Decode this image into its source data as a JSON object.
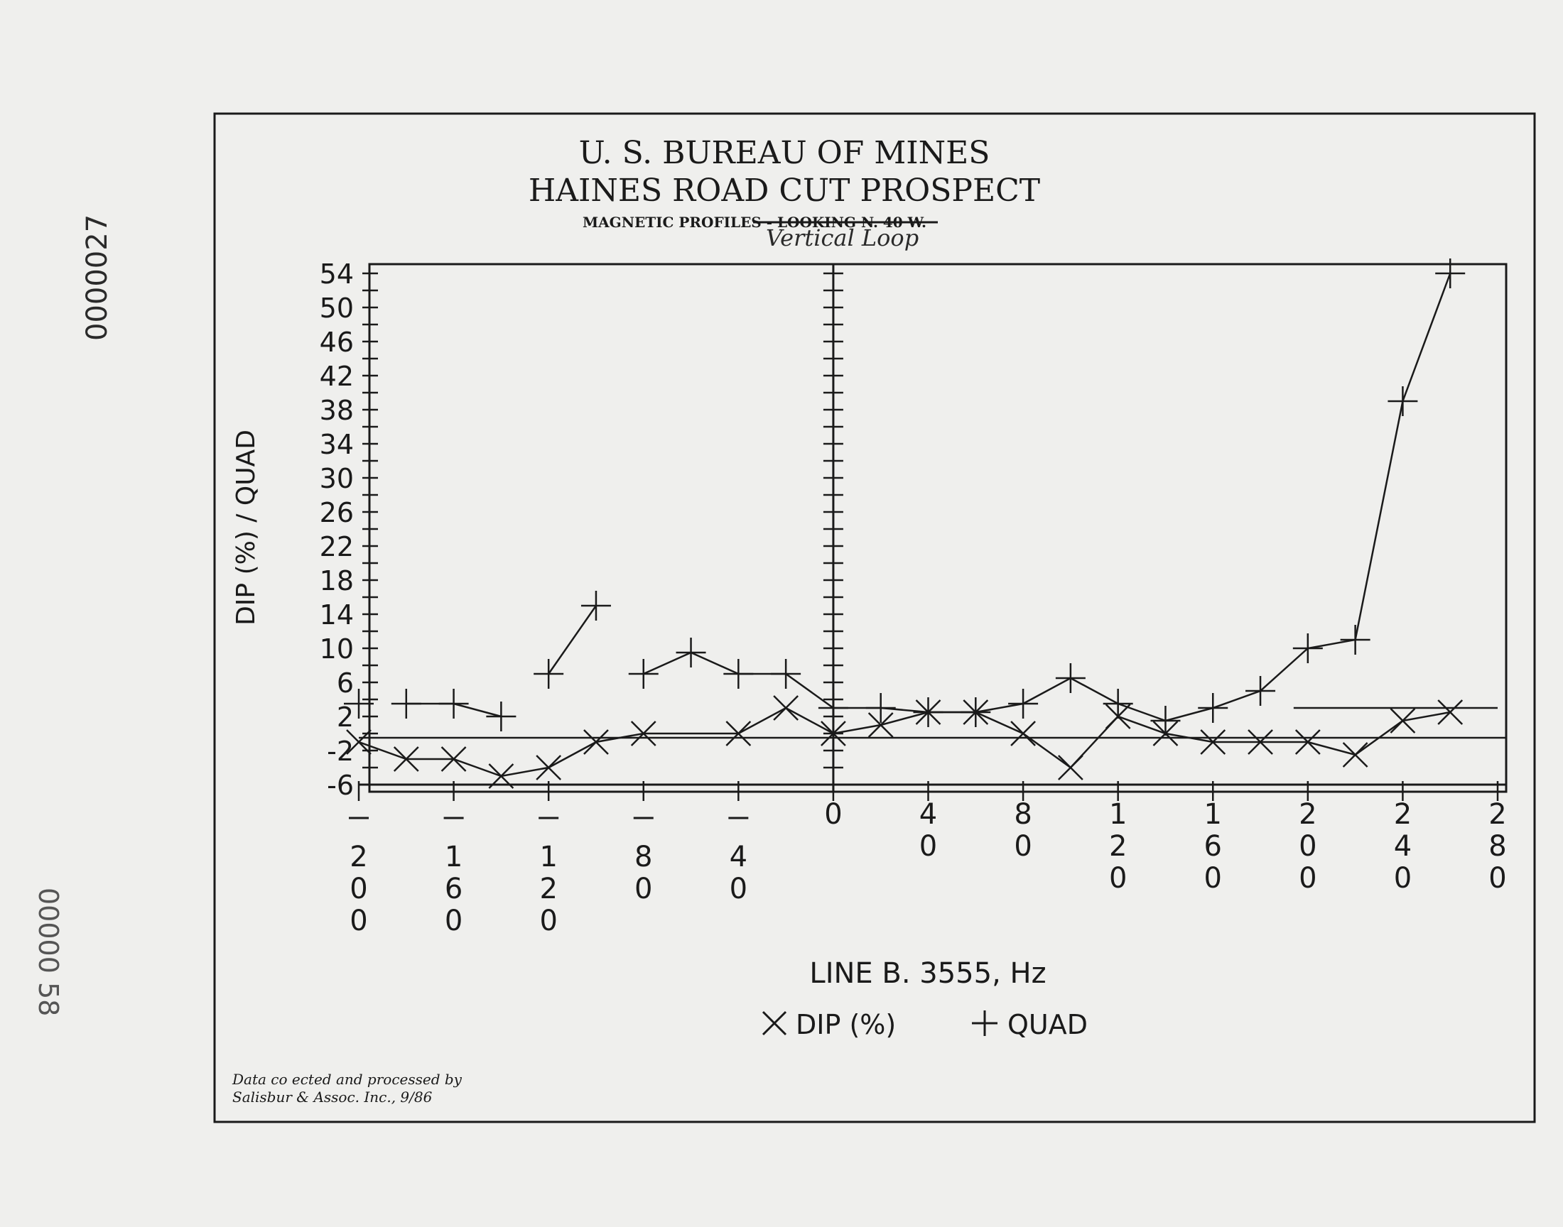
{
  "page": {
    "stamp_top": "0000027",
    "stamp_bottom": "00000 58"
  },
  "header": {
    "title_line1": "U. S. BUREAU OF MINES",
    "title_line2": "HAINES ROAD CUT PROSPECT",
    "subtitle_struck": "MAGNETIC PROFILES",
    "subtitle_rest": " - LOOKING N. 40 W.",
    "handwritten_note": "Vertical Loop"
  },
  "footer": {
    "credit_line1": "Data co ected and processed by",
    "credit_line2": "Salisbur & Assoc. Inc., 9/86"
  },
  "colors": {
    "ink": "#1a1a1a",
    "paper": "#efefed"
  },
  "chart_data": {
    "type": "line",
    "xlabel": "LINE B. 3555, Hz",
    "ylabel": "DIP (%) / QUAD",
    "xlim": [
      -200,
      280
    ],
    "ylim": [
      -6,
      54
    ],
    "x_ticks": [
      {
        "value": -200,
        "label": "-200"
      },
      {
        "value": -160,
        "label": "-160"
      },
      {
        "value": -120,
        "label": "-120"
      },
      {
        "value": -80,
        "label": "-80"
      },
      {
        "value": -40,
        "label": "-40"
      },
      {
        "value": 0,
        "label": "0"
      },
      {
        "value": 40,
        "label": "40"
      },
      {
        "value": 80,
        "label": "80"
      },
      {
        "value": 120,
        "label": "120"
      },
      {
        "value": 160,
        "label": "160"
      },
      {
        "value": 200,
        "label": "200"
      },
      {
        "value": 240,
        "label": "240"
      },
      {
        "value": 280,
        "label": "280"
      }
    ],
    "y_ticks": [
      "54",
      "50",
      "46",
      "42",
      "38",
      "34",
      "30",
      "26",
      "22",
      "18",
      "14",
      "10",
      "6",
      "2",
      "-2",
      "-6"
    ],
    "legend": [
      {
        "marker": "x",
        "label": "DIP (%)"
      },
      {
        "marker": "+",
        "label": "QUAD"
      }
    ],
    "series": [
      {
        "name": "DIP (%)",
        "marker": "x",
        "segments": [
          [
            {
              "x": -200,
              "y": -1
            },
            {
              "x": -180,
              "y": -3
            },
            {
              "x": -160,
              "y": -3
            },
            {
              "x": -140,
              "y": -5
            },
            {
              "x": -120,
              "y": -4
            },
            {
              "x": -100,
              "y": -1
            },
            {
              "x": -80,
              "y": 0
            },
            {
              "x": -40,
              "y": 0
            },
            {
              "x": -20,
              "y": 3
            },
            {
              "x": 0,
              "y": 0
            },
            {
              "x": 20,
              "y": 1
            },
            {
              "x": 40,
              "y": 2.5
            },
            {
              "x": 60,
              "y": 2.5
            },
            {
              "x": 80,
              "y": 0
            },
            {
              "x": 100,
              "y": -4
            },
            {
              "x": 120,
              "y": 2
            },
            {
              "x": 140,
              "y": 0
            },
            {
              "x": 160,
              "y": -1
            },
            {
              "x": 180,
              "y": -1
            },
            {
              "x": 200,
              "y": -1
            },
            {
              "x": 220,
              "y": -2.5
            },
            {
              "x": 240,
              "y": 1.5
            },
            {
              "x": 260,
              "y": 2.5
            }
          ]
        ]
      },
      {
        "name": "QUAD",
        "marker": "+",
        "segments": [
          [
            {
              "x": -200,
              "y": 3.5
            }
          ],
          [
            {
              "x": -180,
              "y": 3.5
            },
            {
              "x": -160,
              "y": 3.5
            },
            {
              "x": -140,
              "y": 2
            }
          ],
          [
            {
              "x": -120,
              "y": 7
            },
            {
              "x": -100,
              "y": 15
            }
          ],
          [
            {
              "x": -80,
              "y": 7
            },
            {
              "x": -60,
              "y": 9.5
            },
            {
              "x": -40,
              "y": 7
            },
            {
              "x": -20,
              "y": 7
            },
            {
              "x": 0,
              "y": 3
            },
            {
              "x": 20,
              "y": 3
            },
            {
              "x": 40,
              "y": 2.5
            },
            {
              "x": 60,
              "y": 2.5
            },
            {
              "x": 80,
              "y": 3.5
            },
            {
              "x": 100,
              "y": 6.5
            },
            {
              "x": 120,
              "y": 3.5
            },
            {
              "x": 140,
              "y": 1.5
            },
            {
              "x": 160,
              "y": 3
            },
            {
              "x": 180,
              "y": 5
            },
            {
              "x": 200,
              "y": 10
            },
            {
              "x": 220,
              "y": 11
            },
            {
              "x": 240,
              "y": 39
            },
            {
              "x": 260,
              "y": 54
            }
          ]
        ]
      }
    ],
    "reference_lines": [
      {
        "y": -0.5
      },
      {
        "y": 3,
        "x_from": 200,
        "x_to": 280
      }
    ]
  }
}
